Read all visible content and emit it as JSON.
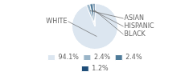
{
  "chart_data": {
    "type": "pie",
    "categories": [
      "WHITE",
      "ASIAN",
      "HISPANIC",
      "BLACK"
    ],
    "values": [
      94.1,
      2.4,
      2.4,
      1.2
    ],
    "value_labels": [
      "94.1%",
      "2.4%",
      "2.4%",
      "1.2%"
    ],
    "colors": [
      "#dce6f0",
      "#9ab5c8",
      "#4f7b99",
      "#1f4e79"
    ],
    "legend": "bottom"
  }
}
